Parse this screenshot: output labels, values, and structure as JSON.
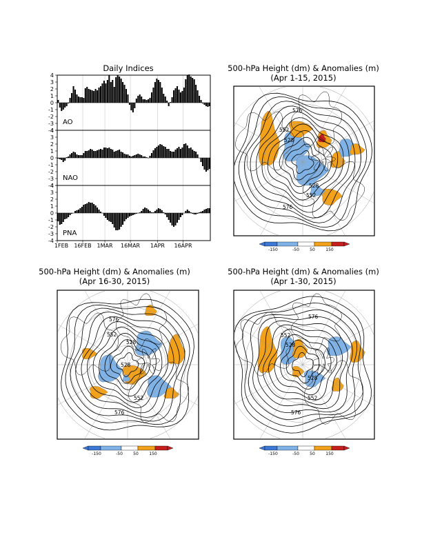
{
  "colors": {
    "strong_negative": "#3c78d8",
    "negative": "#7fb3e8",
    "positive": "#f2a11a",
    "strong_positive": "#c81e1e"
  },
  "chart_data": [
    {
      "type": "bar",
      "title": "Daily Indices",
      "x_tick_labels": [
        "1FEB",
        "16FEB",
        "1MAR",
        "16MAR",
        "1APR",
        "16APR"
      ],
      "ylim": [
        -4,
        4
      ],
      "y_ticks": [
        "4",
        "3",
        "2",
        "1",
        "0",
        "-1",
        "-2",
        "-3",
        "-4"
      ],
      "grid": true,
      "series": [
        {
          "name": "AO",
          "values": [
            0.4,
            -0.7,
            -1.2,
            -1.0,
            -0.7,
            -0.5,
            -0.1,
            0.7,
            1.4,
            2.4,
            1.9,
            1.2,
            0.9,
            0.8,
            0.8,
            0.7,
            2.1,
            2.3,
            2.0,
            1.9,
            1.8,
            1.7,
            2.0,
            1.8,
            2.2,
            2.4,
            2.8,
            3.2,
            2.8,
            3.3,
            4.0,
            3.0,
            3.3,
            2.3,
            3.7,
            4.0,
            3.8,
            3.5,
            3.0,
            2.6,
            2.0,
            1.2,
            -0.3,
            -1.1,
            -1.4,
            -0.8,
            0.6,
            1.0,
            1.2,
            0.9,
            0.5,
            0.5,
            0.4,
            0.5,
            0.7,
            1.5,
            2.2,
            3.0,
            3.5,
            3.3,
            3.0,
            2.2,
            1.3,
            0.9,
            0.3,
            -0.5,
            0.1,
            0.8,
            1.8,
            2.1,
            2.4,
            1.9,
            1.5,
            1.7,
            2.2,
            3.4,
            4.0,
            4.1,
            3.8,
            3.6,
            3.4,
            2.6,
            1.8,
            1.0,
            0.4,
            -0.1,
            -0.3,
            -0.5,
            -0.6,
            -0.5
          ]
        },
        {
          "name": "NAO",
          "values": [
            -0.1,
            -0.2,
            -0.3,
            -0.6,
            -0.4,
            0.1,
            0.2,
            0.5,
            0.7,
            0.9,
            0.8,
            0.5,
            0.4,
            0.4,
            0.4,
            0.7,
            1.0,
            1.0,
            1.1,
            1.3,
            1.2,
            1.0,
            1.0,
            1.1,
            1.2,
            1.3,
            1.2,
            1.5,
            1.5,
            1.4,
            1.5,
            1.3,
            1.2,
            0.9,
            1.0,
            1.1,
            1.2,
            0.9,
            0.8,
            0.6,
            0.5,
            0.5,
            0.3,
            0.2,
            0.3,
            0.4,
            0.5,
            0.6,
            0.5,
            0.4,
            0.2,
            0.2,
            0.1,
            0.0,
            0.3,
            0.7,
            1.1,
            1.4,
            1.6,
            1.8,
            2.0,
            1.9,
            1.7,
            1.6,
            1.3,
            1.3,
            1.0,
            0.9,
            0.9,
            1.2,
            1.4,
            1.6,
            1.3,
            1.5,
            2.0,
            2.1,
            1.8,
            1.4,
            1.5,
            1.2,
            1.0,
            0.9,
            0.5,
            0.0,
            -0.6,
            -1.2,
            -1.7,
            -2.0,
            -1.8,
            -1.6
          ]
        },
        {
          "name": "PNA",
          "values": [
            -1.2,
            -1.7,
            -1.6,
            -1.3,
            -0.9,
            -0.8,
            -0.6,
            -0.3,
            -0.1,
            0.0,
            0.3,
            0.4,
            0.5,
            0.7,
            0.9,
            1.2,
            1.3,
            1.4,
            1.6,
            1.5,
            1.5,
            1.3,
            1.1,
            0.8,
            0.5,
            0.2,
            0.0,
            -0.4,
            -0.7,
            -1.0,
            -1.2,
            -1.3,
            -1.6,
            -2.1,
            -2.5,
            -2.5,
            -2.4,
            -2.0,
            -1.7,
            -1.2,
            -0.9,
            -0.7,
            -0.5,
            -0.4,
            -0.3,
            -0.2,
            -0.1,
            0.0,
            0.1,
            0.3,
            0.6,
            0.8,
            0.7,
            0.5,
            0.3,
            0.1,
            0.1,
            0.3,
            0.5,
            0.7,
            0.6,
            0.4,
            0.1,
            -0.2,
            -0.6,
            -1.0,
            -1.4,
            -1.8,
            -2.0,
            -1.8,
            -1.4,
            -1.0,
            -0.6,
            -0.3,
            0.0,
            0.3,
            0.5,
            0.3,
            0.1,
            -0.1,
            -0.2,
            -0.2,
            -0.1,
            0.1,
            0.2,
            0.3,
            0.5,
            0.6,
            0.7,
            0.7
          ]
        }
      ]
    },
    {
      "type": "heatmap",
      "title_line1": "500-hPa Height (dm) & Anomalies (m)",
      "title_line2": "(Apr 1-15, 2015)",
      "contour_labels": [
        "576",
        "552",
        "528",
        "528",
        "552",
        "576"
      ],
      "colorbar": [
        "-150",
        "-50",
        "50",
        "150"
      ]
    },
    {
      "type": "heatmap",
      "title_line1": "500-hPa Height (dm) & Anomalies (m)",
      "title_line2": "(Apr 16-30, 2015)",
      "contour_labels": [
        "576",
        "552",
        "528",
        "528",
        "552",
        "576"
      ],
      "colorbar": [
        "-150",
        "-50",
        "50",
        "150"
      ]
    },
    {
      "type": "heatmap",
      "title_line1": "500-hPa Height (dm) & Anomalies (m)",
      "title_line2": "(Apr 1-30, 2015)",
      "contour_labels": [
        "576",
        "552",
        "528",
        "528",
        "552",
        "576"
      ],
      "colorbar": [
        "-150",
        "-50",
        "50",
        "150"
      ]
    }
  ]
}
